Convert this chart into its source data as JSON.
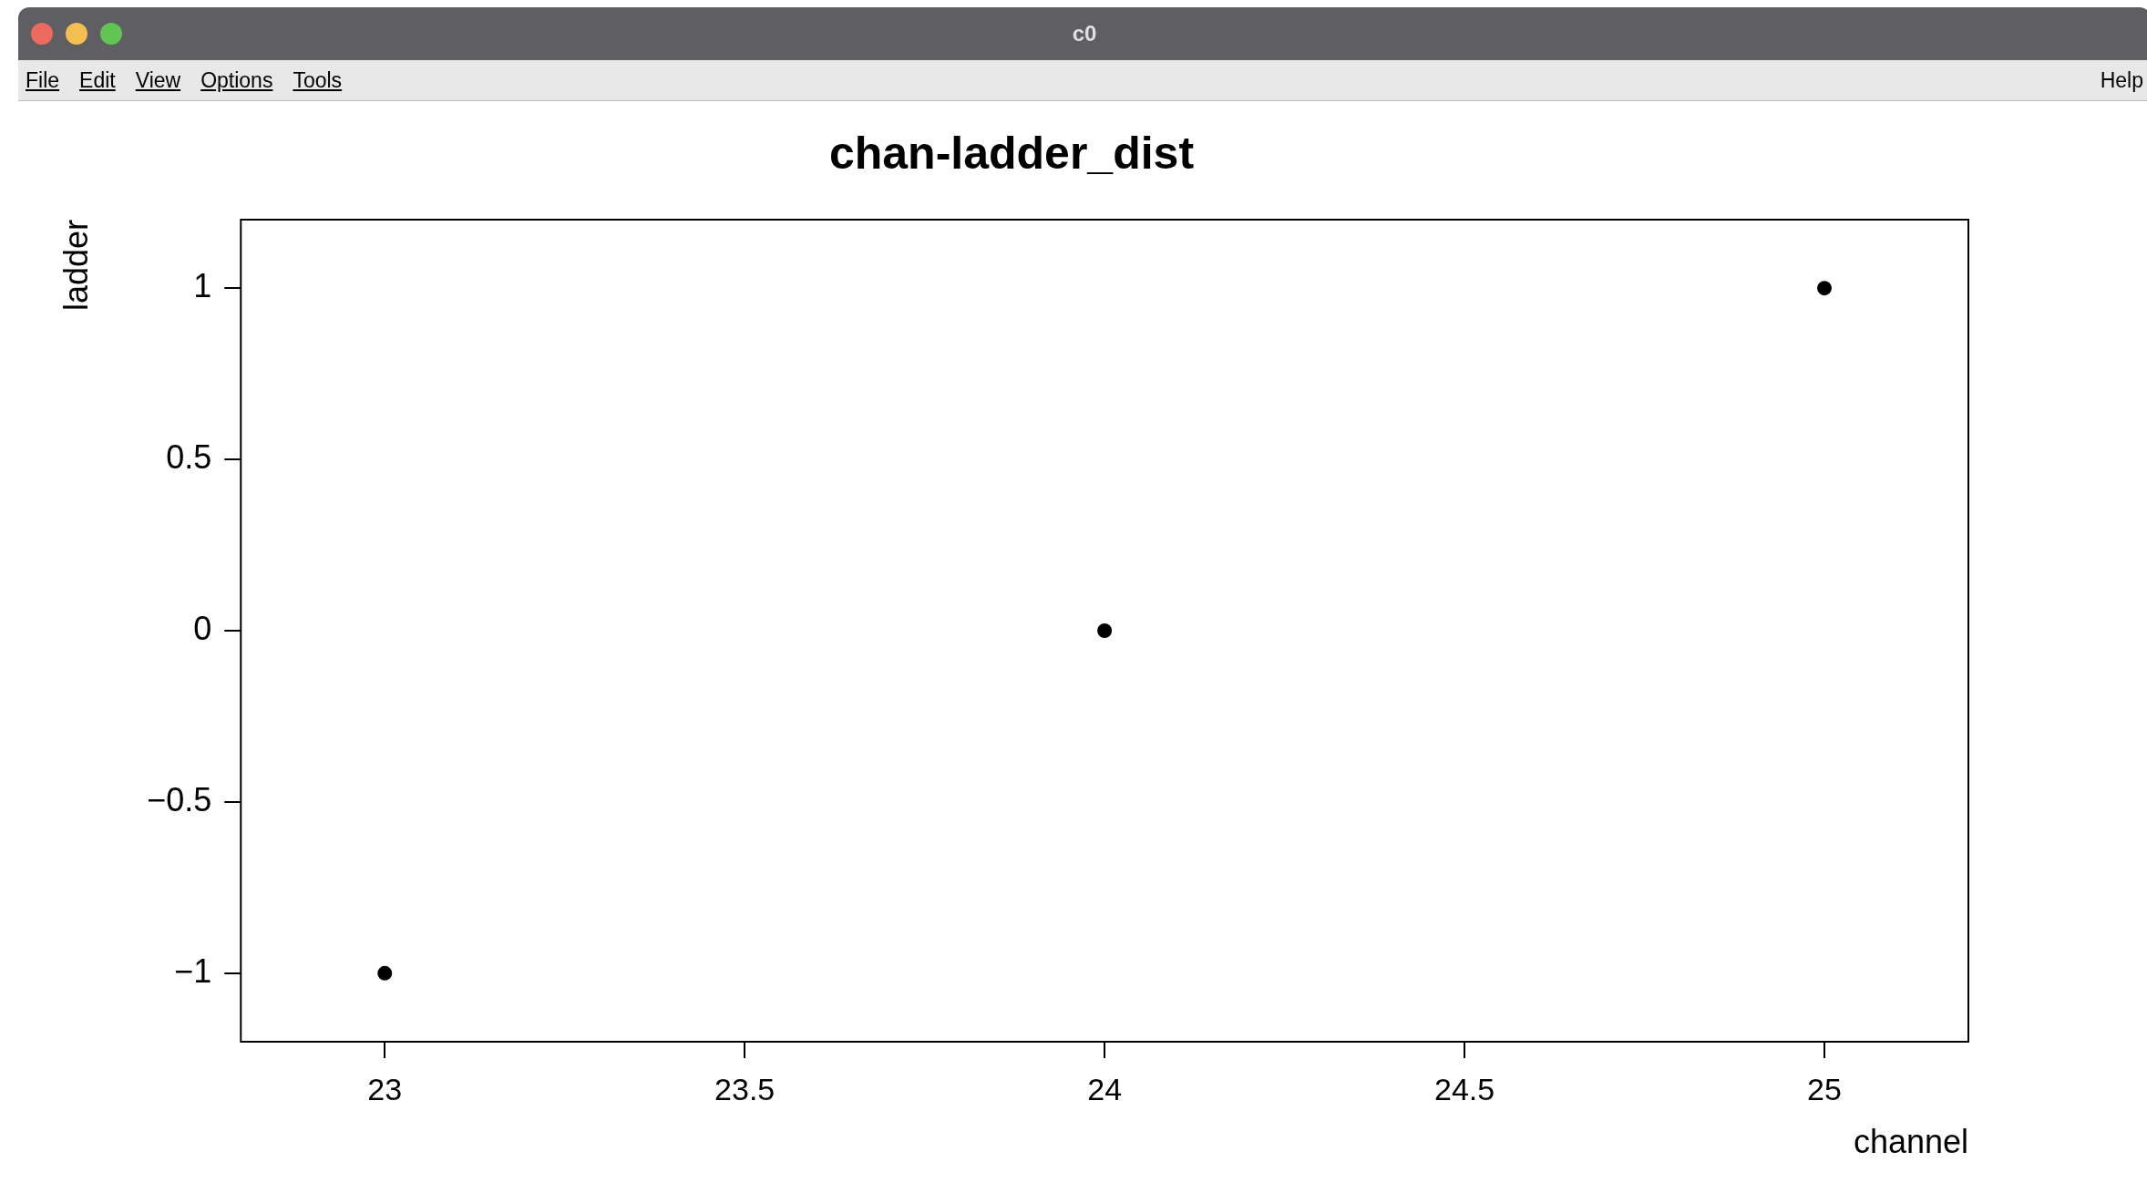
{
  "chart_data": {
    "type": "scatter",
    "title": "chan-ladder_dist",
    "xlabel": "channel",
    "ylabel": "ladder",
    "annotations": [
      "c0",
      "File",
      "Edit",
      "View",
      "Options",
      "Tools",
      "Help"
    ],
    "x": [
      23,
      24,
      25
    ],
    "values": [
      -1,
      0,
      1
    ],
    "color": "#000000",
    "marker": "circle",
    "grid": false,
    "legend": false,
    "xlim": [
      22.8,
      25.2
    ],
    "ylim": [
      -1.2,
      1.2
    ],
    "xticks": [
      23,
      23.5,
      24,
      24.5,
      25
    ],
    "yticks": [
      {
        "value": -1,
        "label": "−1"
      },
      {
        "value": -0.5,
        "label": "−0.5"
      },
      0,
      0.5,
      1
    ]
  }
}
